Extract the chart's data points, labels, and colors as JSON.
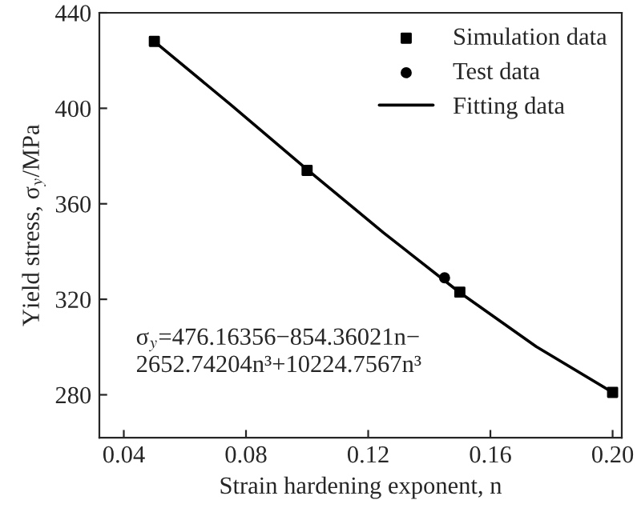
{
  "chart_data": {
    "type": "scatter",
    "xlabel": "Strain hardening exponent, n",
    "ylabel": "Yield stress, σ$_{y}$/MPa",
    "xlim": [
      0.032,
      0.203
    ],
    "xticks": [
      {
        "value": 0.04,
        "label": "0.04"
      },
      {
        "value": 0.08,
        "label": "0.08"
      },
      {
        "value": 0.12,
        "label": "0.12"
      },
      {
        "value": 0.16,
        "label": "0.16"
      },
      {
        "value": 0.2,
        "label": "0.20"
      }
    ],
    "ylim": [
      262,
      440
    ],
    "yticks": [
      280,
      320,
      360,
      400,
      440
    ],
    "series": [
      {
        "name": "Simulation data",
        "marker": "square",
        "color": "#000000",
        "x": [
          0.05,
          0.1,
          0.15,
          0.2
        ],
        "values": [
          428,
          374,
          323,
          281
        ]
      },
      {
        "name": "Test data",
        "marker": "circle",
        "color": "#000000",
        "x": [
          0.145
        ],
        "values": [
          329
        ]
      },
      {
        "name": "Fitting data",
        "type": "line",
        "marker": "none",
        "color": "#000000",
        "x": [
          0.05,
          0.075,
          0.1,
          0.125,
          0.15,
          0.175,
          0.2
        ],
        "values": [
          428,
          401.5,
          374.4,
          347.9,
          322.8,
          300.2,
          281
        ]
      }
    ],
    "annotations": [
      "σ$_{y}$=476.16356−854.36021n−\n2652.74204n³+10224.7567n³"
    ],
    "legend": "top right",
    "grid": false
  }
}
